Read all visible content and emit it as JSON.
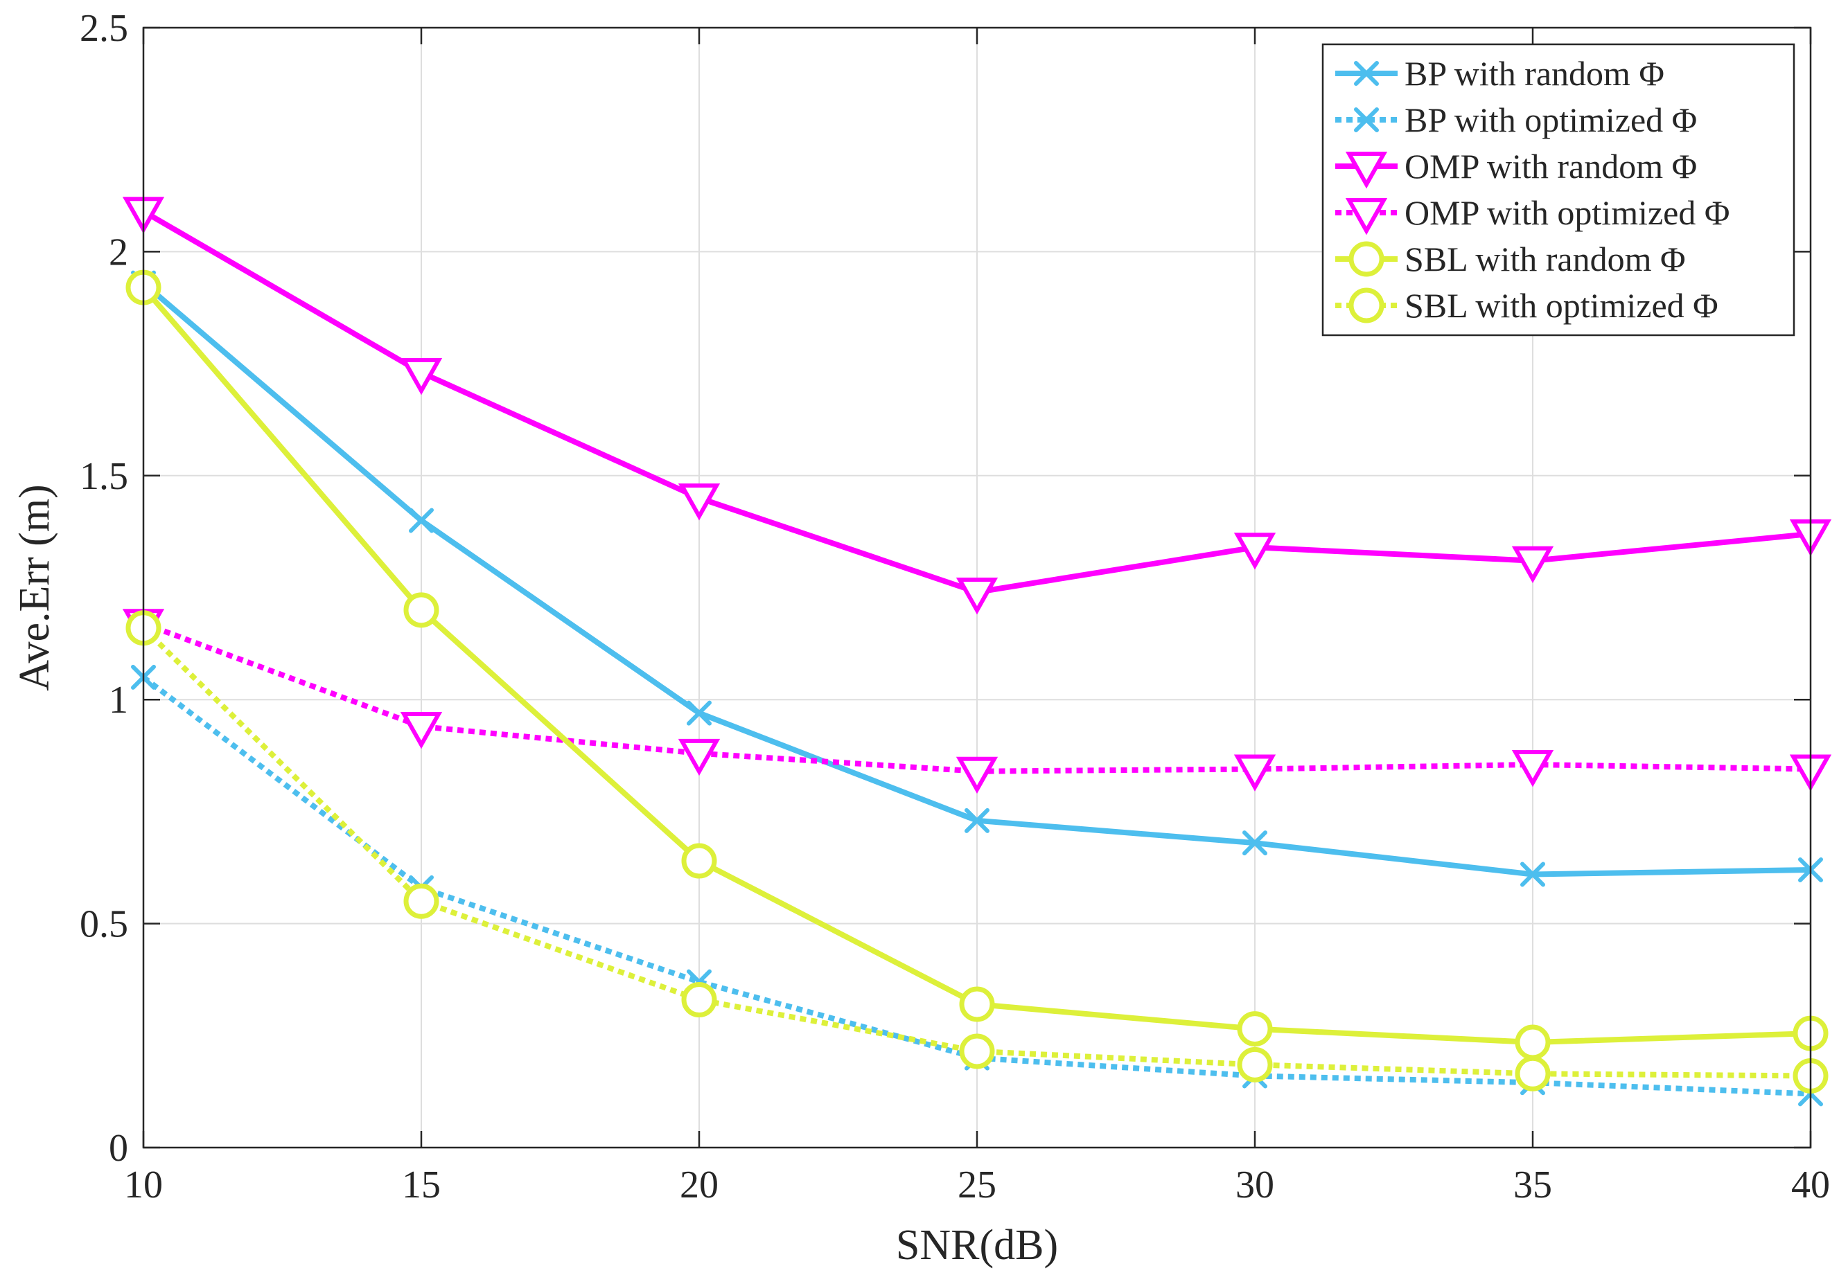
{
  "chart_data": {
    "type": "line",
    "title": "",
    "xlabel": "SNR(dB)",
    "ylabel": "Ave.Err (m)",
    "xlim": [
      10,
      40
    ],
    "ylim": [
      0,
      2.5
    ],
    "xticks": [
      10,
      15,
      20,
      25,
      30,
      35,
      40
    ],
    "yticks": [
      0,
      0.5,
      1,
      1.5,
      2,
      2.5
    ],
    "xtick_labels": [
      "10",
      "15",
      "20",
      "25",
      "30",
      "35",
      "40"
    ],
    "ytick_labels": [
      "0",
      "0.5",
      "1",
      "1.5",
      "2",
      "2.5"
    ],
    "grid": true,
    "legend_position": "top-right",
    "x": [
      10,
      15,
      20,
      25,
      30,
      35,
      40
    ],
    "series": [
      {
        "name": "BP with random Φ",
        "color": "#4DBEEE",
        "style": "solid",
        "marker": "x",
        "values": [
          1.93,
          1.4,
          0.97,
          0.73,
          0.68,
          0.61,
          0.62
        ]
      },
      {
        "name": "BP with optimized Φ",
        "color": "#4DBEEE",
        "style": "dotted",
        "marker": "x",
        "values": [
          1.05,
          0.58,
          0.37,
          0.2,
          0.16,
          0.145,
          0.12
        ]
      },
      {
        "name": "OMP with random Φ",
        "color": "#FF00FF",
        "style": "solid",
        "marker": "triangle-down",
        "values": [
          2.09,
          1.73,
          1.45,
          1.24,
          1.34,
          1.31,
          1.37
        ]
      },
      {
        "name": "OMP with optimized Φ",
        "color": "#FF00FF",
        "style": "dotted",
        "marker": "triangle-down",
        "values": [
          1.17,
          0.94,
          0.88,
          0.84,
          0.845,
          0.855,
          0.845
        ]
      },
      {
        "name": "SBL with random Φ",
        "color": "#DDF03A",
        "style": "solid",
        "marker": "circle",
        "values": [
          1.92,
          1.2,
          0.64,
          0.32,
          0.265,
          0.235,
          0.255
        ]
      },
      {
        "name": "SBL with optimized Φ",
        "color": "#DDF03A",
        "style": "dotted",
        "marker": "circle",
        "values": [
          1.16,
          0.55,
          0.33,
          0.215,
          0.185,
          0.165,
          0.16
        ]
      }
    ]
  }
}
